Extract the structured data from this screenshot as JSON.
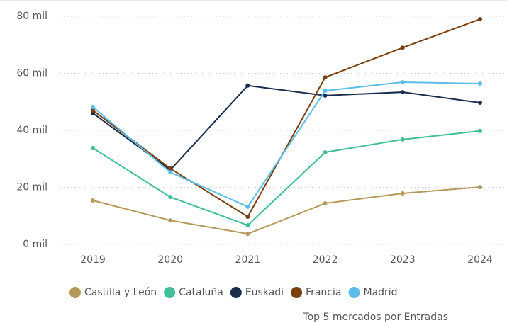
{
  "chart_data": {
    "type": "line",
    "x_label": "Top 5 mercados por Entradas",
    "categories": [
      "2019",
      "2020",
      "2021",
      "2022",
      "2023",
      "2024"
    ],
    "series": [
      {
        "name": "Castilla y León",
        "color": "#b5995a",
        "values": [
          15400,
          8400,
          3700,
          14400,
          17900,
          20100
        ]
      },
      {
        "name": "Cataluña",
        "color": "#3fbf95",
        "values": [
          33800,
          16600,
          6700,
          32300,
          36800,
          39800
        ]
      },
      {
        "name": "Euskadi",
        "color": "#1b2d4d",
        "values": [
          46000,
          26100,
          55700,
          52200,
          53400,
          49700
        ]
      },
      {
        "name": "Francia",
        "color": "#7b3f10",
        "values": [
          47000,
          26600,
          9700,
          58600,
          69000,
          79000
        ]
      },
      {
        "name": "Madrid",
        "color": "#5bbde8",
        "values": [
          48200,
          25300,
          13200,
          53900,
          56900,
          56400
        ]
      }
    ],
    "ylim": [
      0,
      80000
    ],
    "yticks": [
      {
        "value": 0,
        "label": "0 mil"
      },
      {
        "value": 20000,
        "label": "20 mil"
      },
      {
        "value": 40000,
        "label": "40 mil"
      },
      {
        "value": 60000,
        "label": "60 mil"
      },
      {
        "value": 80000,
        "label": "80 mil"
      }
    ],
    "grid": true,
    "legend": "bottom"
  }
}
